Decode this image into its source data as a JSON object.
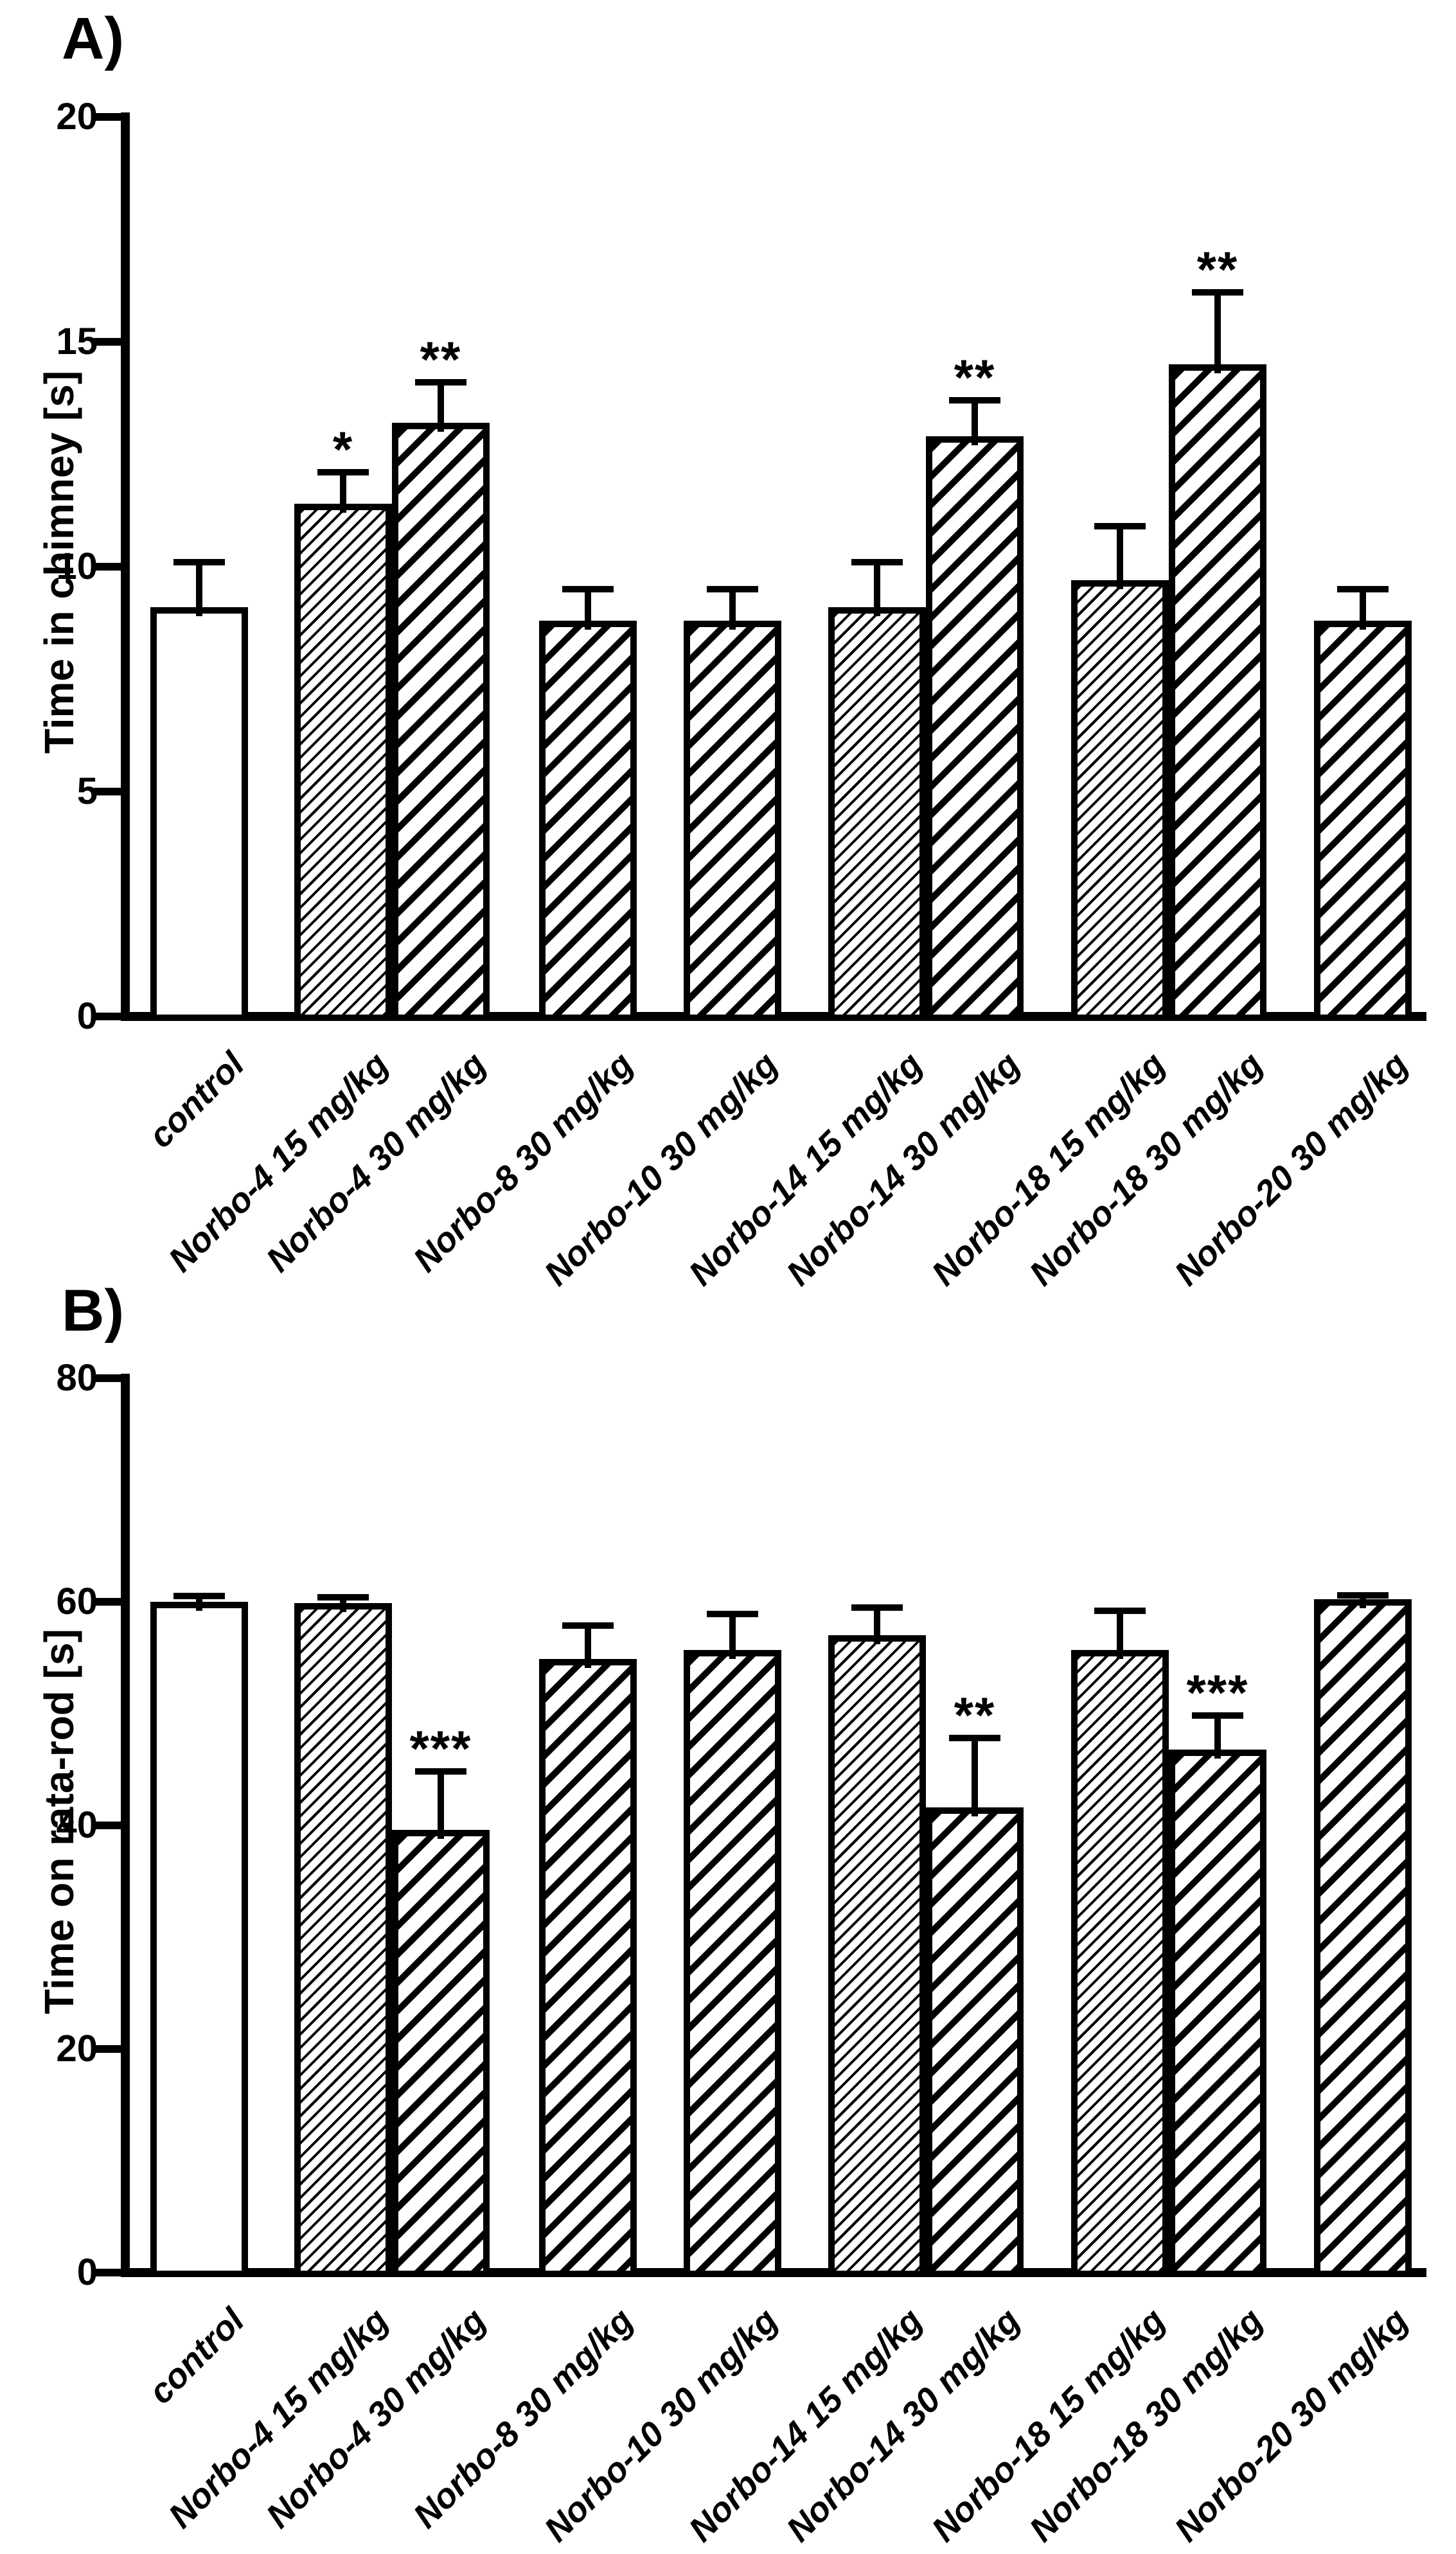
{
  "page": {
    "background_color": "#ffffff",
    "ink_color": "#000000"
  },
  "chart_data": [
    {
      "type": "bar",
      "panel_label": "A)",
      "title": "",
      "xlabel": "",
      "ylabel": "Time in chimney [s]",
      "ylim": [
        0,
        20
      ],
      "yticks": [
        0,
        5,
        10,
        15,
        20
      ],
      "grid": false,
      "legend": "none",
      "error_bars": "upper SEM, cap at top",
      "categories": [
        "control",
        "Norbo-4 15 mg/kg",
        "Norbo-4 30 mg/kg",
        "Norbo-8 30 mg/kg",
        "Norbo-10 30 mg/kg",
        "Norbo-14 15 mg/kg",
        "Norbo-14 30 mg/kg",
        "Norbo-18 15 mg/kg",
        "Norbo-18 30 mg/kg",
        "Norbo-20 30 mg/kg"
      ],
      "values": [
        9.0,
        11.3,
        13.1,
        8.7,
        8.7,
        9.0,
        12.8,
        9.6,
        14.4,
        8.7
      ],
      "errors": [
        1.0,
        0.7,
        0.9,
        0.7,
        0.7,
        1.0,
        0.8,
        1.2,
        1.6,
        0.7
      ],
      "significance": [
        "",
        "*",
        "**",
        "",
        "",
        "",
        "**",
        "",
        "**",
        ""
      ],
      "bar_fill_styles": [
        "open",
        "hatch-thin",
        "hatch-thick",
        "hatch-thick",
        "hatch-thick",
        "hatch-thin",
        "hatch-thick",
        "hatch-thin",
        "hatch-thick",
        "hatch-thick"
      ],
      "bar_fill_color": "#ffffff",
      "line_color": "#000000"
    },
    {
      "type": "bar",
      "panel_label": "B)",
      "title": "",
      "xlabel": "",
      "ylabel": "Time on rata-rod [s]",
      "ylim": [
        0,
        80
      ],
      "yticks": [
        0,
        20,
        40,
        60,
        80
      ],
      "grid": false,
      "legend": "none",
      "error_bars": "upper SEM, cap at top",
      "categories": [
        "control",
        "Norbo-4 15 mg/kg",
        "Norbo-4 30 mg/kg",
        "Norbo-8 30 mg/kg",
        "Norbo-10 30 mg/kg",
        "Norbo-14 15 mg/kg",
        "Norbo-14 30 mg/kg",
        "Norbo-18 15 mg/kg",
        "Norbo-18 30 mg/kg",
        "Norbo-20 30 mg/kg"
      ],
      "values": [
        59.6,
        59.5,
        39.2,
        54.5,
        55.3,
        56.6,
        41.2,
        55.3,
        46.4,
        59.8
      ],
      "errors": [
        0.5,
        0.5,
        5.2,
        3.0,
        3.2,
        2.5,
        6.2,
        3.5,
        3.0,
        0.4
      ],
      "significance": [
        "",
        "",
        "***",
        "",
        "",
        "",
        "**",
        "",
        "***",
        ""
      ],
      "bar_fill_styles": [
        "open",
        "hatch-thin",
        "hatch-thick",
        "hatch-thick",
        "hatch-thick",
        "hatch-thin",
        "hatch-thick",
        "hatch-thin",
        "hatch-thick",
        "hatch-thick"
      ],
      "bar_fill_color": "#ffffff",
      "line_color": "#000000"
    }
  ]
}
